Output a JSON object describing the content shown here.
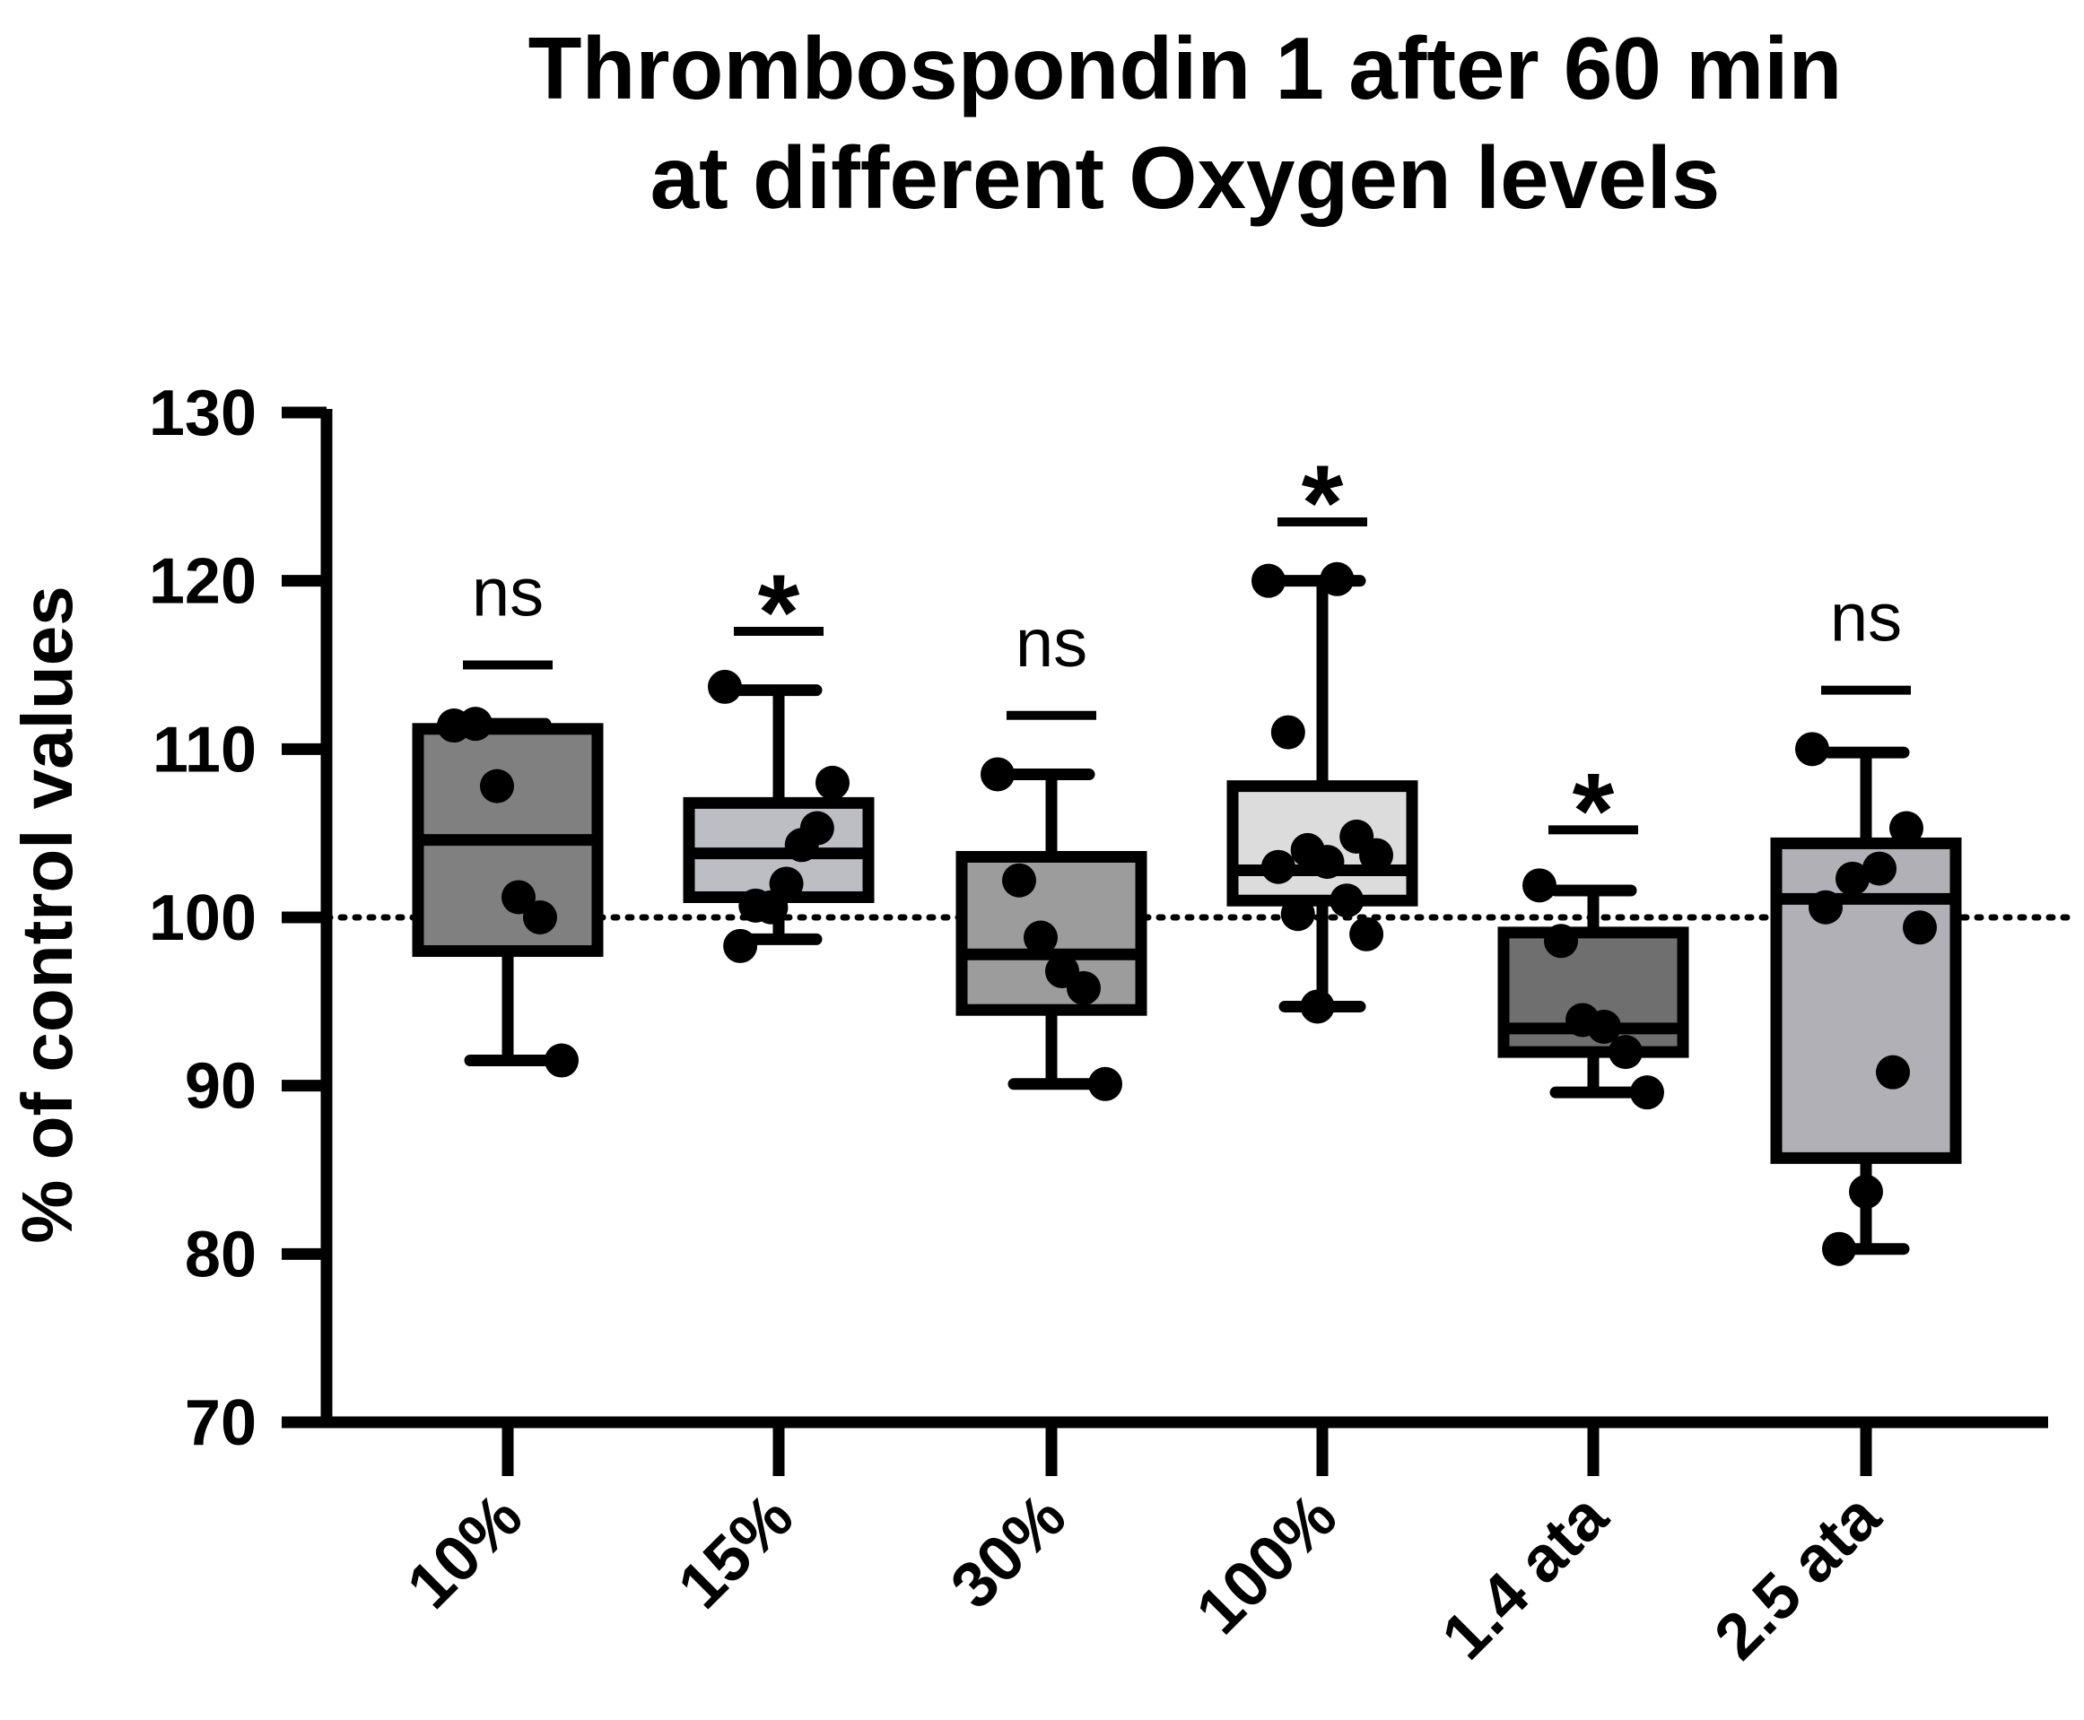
{
  "chart_data": {
    "type": "box",
    "title": [
      "Thrombospondin 1 after 60 min",
      "at different Oxygen levels"
    ],
    "xlabel": "",
    "ylabel": "% of control values",
    "ylim": [
      70,
      130
    ],
    "yticks": [
      70,
      80,
      90,
      100,
      110,
      120,
      130
    ],
    "ytick_labels": [
      "70",
      "80",
      "90",
      "100",
      "110",
      "120",
      "130"
    ],
    "reference_line": {
      "value": 100,
      "style": "dotted"
    },
    "categories": [
      "10%",
      "15%",
      "30%",
      "100%",
      "1.4 ata",
      "2.5 ata"
    ],
    "groups": [
      {
        "label": "10%",
        "fill": "#808080",
        "min": 91.5,
        "q1": 98.0,
        "median": 104.6,
        "q3": 111.2,
        "max": 111.5,
        "points": [
          111.4,
          111.5,
          107.8,
          101.2,
          100.0,
          91.5
        ],
        "significance": "ns",
        "sig_line_y": 115.0
      },
      {
        "label": "15%",
        "fill": "#bdbdc4",
        "min": 98.7,
        "q1": 101.2,
        "median": 103.8,
        "q3": 106.8,
        "max": 113.5,
        "points": [
          113.7,
          108.0,
          105.3,
          104.3,
          102.0,
          100.6,
          100.7,
          98.3
        ],
        "significance": "*",
        "sig_line_y": 117.0
      },
      {
        "label": "30%",
        "fill": "#9c9c9c",
        "min": 90.1,
        "q1": 94.5,
        "median": 97.8,
        "q3": 103.6,
        "max": 108.5,
        "points": [
          108.5,
          102.2,
          98.8,
          96.8,
          95.8,
          90.1
        ],
        "significance": "ns",
        "sig_line_y": 112.0
      },
      {
        "label": "100%",
        "fill": "#dcdcdc",
        "min": 94.7,
        "q1": 101.0,
        "median": 102.8,
        "q3": 107.8,
        "max": 120.0,
        "points": [
          120.0,
          120.1,
          111.0,
          104.8,
          104.0,
          103.7,
          103.3,
          103.0,
          101.0,
          100.2,
          99.0,
          94.7
        ],
        "significance": "*",
        "sig_line_y": 123.5
      },
      {
        "label": "1.4 ata",
        "fill": "#6f6f6f",
        "min": 89.6,
        "q1": 92.0,
        "median": 93.4,
        "q3": 99.1,
        "max": 101.6,
        "points": [
          101.9,
          98.6,
          93.9,
          93.5,
          92.0,
          89.6
        ],
        "significance": "*",
        "sig_line_y": 105.2
      },
      {
        "label": "2.5 ata",
        "fill": "#b0b0b6",
        "min": 80.3,
        "q1": 85.7,
        "median": 101.1,
        "q3": 104.4,
        "max": 109.8,
        "points": [
          110.0,
          105.3,
          102.9,
          102.3,
          100.6,
          99.4,
          90.8,
          83.7,
          80.3
        ],
        "significance": "ns",
        "sig_line_y": 113.5
      }
    ]
  }
}
